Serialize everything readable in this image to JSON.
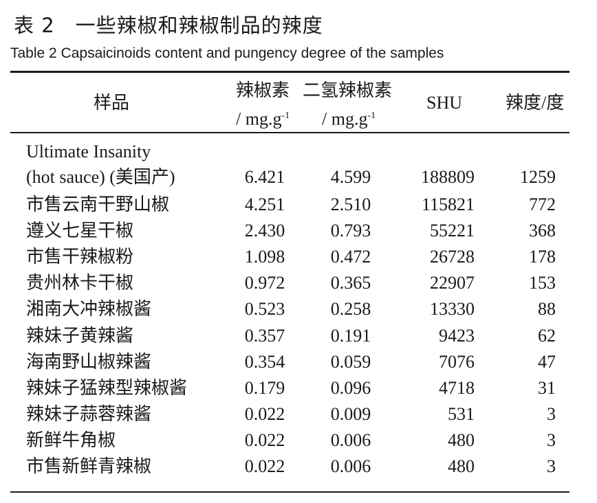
{
  "title": "表 2　一些辣椒和辣椒制品的辣度",
  "subtitle": "Table 2   Capsaicinoids content and pungency degree of the samples",
  "header": {
    "sample": "样品",
    "capsaicin": "辣椒素",
    "dihydrocapsaicin": "二氢辣椒素",
    "unit": "/ mg.g",
    "unit_exp": "-1",
    "shu": "SHU",
    "pungency": "辣度/度"
  },
  "rows": [
    {
      "name": "Ultimate Insanity",
      "name2": "(hot sauce) (美国产)",
      "capsaicin": "6.421",
      "dihydrocapsaicin": "4.599",
      "shu": "188809",
      "degree": "1259"
    },
    {
      "name": "市售云南干野山椒",
      "capsaicin": "4.251",
      "dihydrocapsaicin": "2.510",
      "shu": "115821",
      "degree": "772"
    },
    {
      "name": "遵义七星干椒",
      "capsaicin": "2.430",
      "dihydrocapsaicin": "0.793",
      "shu": "55221",
      "degree": "368"
    },
    {
      "name": "市售干辣椒粉",
      "capsaicin": "1.098",
      "dihydrocapsaicin": "0.472",
      "shu": "26728",
      "degree": "178"
    },
    {
      "name": "贵州林卡干椒",
      "capsaicin": "0.972",
      "dihydrocapsaicin": "0.365",
      "shu": "22907",
      "degree": "153"
    },
    {
      "name": "湘南大冲辣椒酱",
      "capsaicin": "0.523",
      "dihydrocapsaicin": "0.258",
      "shu": "13330",
      "degree": "88"
    },
    {
      "name": "辣妹子黄辣酱",
      "capsaicin": "0.357",
      "dihydrocapsaicin": "0.191",
      "shu": "9423",
      "degree": "62"
    },
    {
      "name": "海南野山椒辣酱",
      "capsaicin": "0.354",
      "dihydrocapsaicin": "0.059",
      "shu": "7076",
      "degree": "47"
    },
    {
      "name": "辣妹子猛辣型辣椒酱",
      "capsaicin": "0.179",
      "dihydrocapsaicin": "0.096",
      "shu": "4718",
      "degree": "31"
    },
    {
      "name": "辣妹子蒜蓉辣酱",
      "capsaicin": "0.022",
      "dihydrocapsaicin": "0.009",
      "shu": "531",
      "degree": "3"
    },
    {
      "name": "新鲜牛角椒",
      "capsaicin": "0.022",
      "dihydrocapsaicin": "0.006",
      "shu": "480",
      "degree": "3"
    },
    {
      "name": "市售新鲜青辣椒",
      "capsaicin": "0.022",
      "dihydrocapsaicin": "0.006",
      "shu": "480",
      "degree": "3"
    }
  ]
}
